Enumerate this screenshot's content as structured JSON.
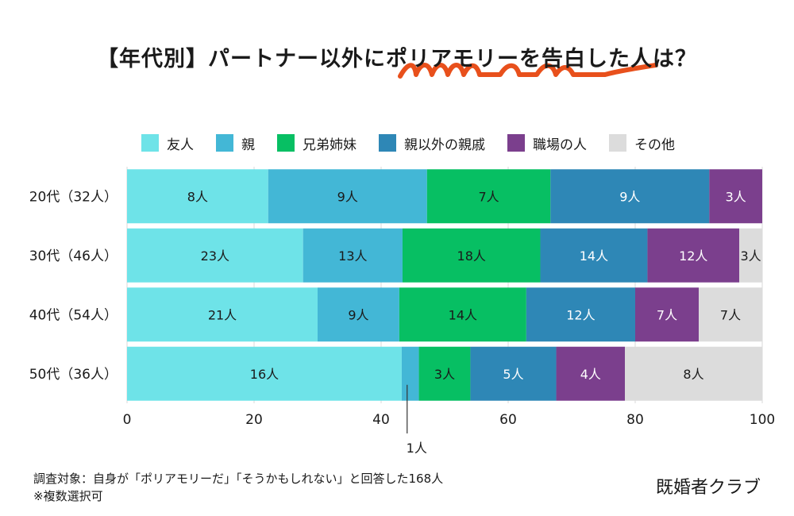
{
  "title": "【年代別】パートナー以外にポリアモリーを告白した人は？",
  "accent_color": "#e8501c",
  "footnote": {
    "line1": "調査対象：自身が「ポリアモリーだ」「そうかもしれない」と回答した168人",
    "line2": "※複数選択可"
  },
  "brand": "既婚者クラブ",
  "chart_data": {
    "type": "bar",
    "orientation": "horizontal",
    "stacked": true,
    "normalized_percent": true,
    "title": "【年代別】パートナー以外にポリアモリーを告白した人は？",
    "categories": [
      "20代（32人）",
      "30代（46人）",
      "40代（54人）",
      "50代（36人）"
    ],
    "xlim": [
      0,
      100
    ],
    "xticks": [
      0,
      20,
      40,
      60,
      80,
      100
    ],
    "grid": true,
    "legend_position": "top",
    "unit": "人",
    "series": [
      {
        "name": "友人",
        "color": "#6ee3e8",
        "values": [
          8,
          23,
          21,
          16
        ]
      },
      {
        "name": "親",
        "color": "#43b7d6",
        "values": [
          9,
          13,
          9,
          1
        ]
      },
      {
        "name": "兄弟姉妹",
        "color": "#07bf63",
        "values": [
          7,
          18,
          14,
          3
        ]
      },
      {
        "name": "親以外の親戚",
        "color": "#2e87b6",
        "values": [
          9,
          14,
          12,
          5
        ]
      },
      {
        "name": "職場の人",
        "color": "#7b3f8d",
        "values": [
          3,
          12,
          7,
          4
        ]
      },
      {
        "name": "その他",
        "color": "#dcdcdc",
        "values": [
          0,
          3,
          7,
          8
        ]
      }
    ],
    "callout": {
      "category_index": 3,
      "series_index": 1,
      "text": "1人"
    }
  }
}
